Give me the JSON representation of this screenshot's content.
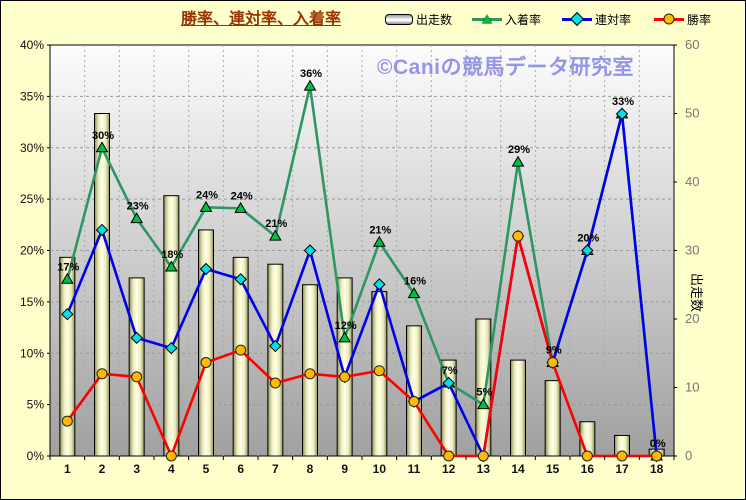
{
  "title": "勝率、連対率、入着率",
  "title_color": "#993300",
  "watermark": "©Caniの競馬データ研究室",
  "legend": [
    {
      "label": "出走数",
      "type": "bar"
    },
    {
      "label": "入着率",
      "type": "line",
      "color": "#2E9663",
      "marker": "triangle"
    },
    {
      "label": "連対率",
      "type": "line",
      "color": "#0000EE",
      "marker": "diamond"
    },
    {
      "label": "勝率",
      "type": "line",
      "color": "#FF0000",
      "marker": "circle"
    }
  ],
  "chart_data": {
    "type": "bar",
    "subtype": "bar+line combo",
    "categories": [
      "1",
      "2",
      "3",
      "4",
      "5",
      "6",
      "7",
      "8",
      "9",
      "10",
      "11",
      "12",
      "13",
      "14",
      "15",
      "16",
      "17",
      "18"
    ],
    "left_axis": {
      "min": 0,
      "max": 40,
      "step": 5,
      "suffix": "%",
      "tick_labels": [
        "0%",
        "5%",
        "10%",
        "15%",
        "20%",
        "25%",
        "30%",
        "35%",
        "40%"
      ]
    },
    "right_axis": {
      "min": 0,
      "max": 60,
      "step": 10,
      "title": "出走数",
      "tick_labels": [
        "0",
        "10",
        "20",
        "30",
        "40",
        "50",
        "60"
      ]
    },
    "grid": true,
    "legend_position": "top",
    "series": [
      {
        "name": "出走数",
        "type": "bar",
        "axis": "right",
        "values": [
          29,
          50,
          26,
          38,
          33,
          29,
          28,
          25,
          26,
          24,
          19,
          14,
          20,
          14,
          11,
          5,
          3,
          1
        ],
        "fill_light": "#FFFFE6",
        "fill_mid": "#EDEDBE",
        "fill_dark": "#8F8F62"
      },
      {
        "name": "入着率",
        "type": "line",
        "axis": "left",
        "color": "#2E9663",
        "marker": "triangle",
        "marker_color": "#00C040",
        "values": [
          17.2,
          30,
          23.1,
          18.4,
          24.2,
          24.1,
          21.4,
          36,
          11.5,
          20.8,
          15.8,
          7.1,
          5,
          28.6,
          9.1,
          20,
          33.3,
          0
        ],
        "point_labels": [
          "17%",
          "30%",
          "23%",
          "18%",
          "24%",
          "24%",
          "21%",
          "36%",
          "12%",
          "21%",
          "16%",
          "7%",
          "5%",
          "29%",
          "9%",
          "20%",
          "33%",
          "0%"
        ]
      },
      {
        "name": "連対率",
        "type": "line",
        "axis": "left",
        "color": "#0000EE",
        "marker": "diamond",
        "marker_color": "#00E0E6",
        "values": [
          13.8,
          22,
          11.5,
          10.5,
          18.2,
          17.2,
          10.7,
          20,
          7.7,
          16.7,
          5.3,
          7.1,
          0,
          21.4,
          9.1,
          20,
          33.3,
          0
        ],
        "point_labels": []
      },
      {
        "name": "勝率",
        "type": "line",
        "axis": "left",
        "color": "#FF0000",
        "marker": "circle",
        "marker_color": "#FFB900",
        "values": [
          3.4,
          8,
          7.7,
          0,
          9.1,
          10.3,
          7.1,
          8,
          7.7,
          8.3,
          5.3,
          0,
          0,
          21.4,
          9.1,
          0,
          0,
          0
        ],
        "point_labels": []
      }
    ]
  },
  "colors": {
    "background": "#FFFFCC",
    "plot_top": "#FDFDFD",
    "plot_bottom": "#A0A0A0",
    "grid_line": "#999999",
    "left_tick": "#111111",
    "right_tick": "#777777",
    "x_tick": "#111111",
    "point_label": "#000000"
  }
}
